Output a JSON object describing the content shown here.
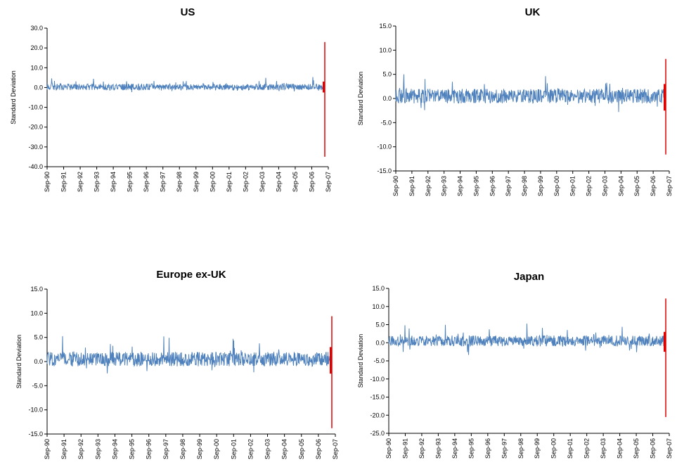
{
  "figure": {
    "colors": {
      "series": "#4f81bd",
      "event": "#e00000",
      "axis": "#000000",
      "text": "#000000"
    }
  },
  "chart_data": [
    {
      "type": "line",
      "title": "US",
      "xlabel": "",
      "ylabel": "Standard Deviation",
      "ylim": [
        -40,
        30
      ],
      "ytick_values": [
        -40,
        -30,
        -20,
        -10,
        0,
        10,
        20,
        30
      ],
      "ytick_labels": [
        "-40.0",
        "-30.0",
        "-20.0",
        "-10.0",
        "0.0",
        "10.0",
        "20.0",
        "30.0"
      ],
      "xtick_labels": [
        "Sep-90",
        "Sep-91",
        "Sep-92",
        "Sep-93",
        "Sep-94",
        "Sep-95",
        "Sep-96",
        "Sep-97",
        "Sep-98",
        "Sep-99",
        "Sep-00",
        "Sep-01",
        "Sep-02",
        "Sep-03",
        "Sep-04",
        "Sep-05",
        "Sep-06",
        "Sep-07"
      ],
      "x_range": [
        "Sep-90",
        "Sep-07"
      ],
      "grid": false,
      "series": [
        {
          "values_summary": "daily noise around 0.0, typical band -2.0 to 2.5, occasional peaks near 5.0"
        },
        {
          "position": "Aug-07",
          "values": [
            23.0,
            -35.0
          ]
        }
      ]
    },
    {
      "type": "line",
      "title": "UK",
      "xlabel": "",
      "ylabel": "Standard Deviation",
      "ylim": [
        -15,
        15
      ],
      "ytick_values": [
        -15,
        -10,
        -5,
        0,
        5,
        10,
        15
      ],
      "ytick_labels": [
        "-15.0",
        "-10.0",
        "-5.0",
        "0.0",
        "5.0",
        "10.0",
        "15.0"
      ],
      "xtick_labels": [
        "Sep-90",
        "Sep-91",
        "Sep-92",
        "Sep-93",
        "Sep-94",
        "Sep-95",
        "Sep-96",
        "Sep-97",
        "Sep-98",
        "Sep-99",
        "Sep-00",
        "Sep-01",
        "Sep-02",
        "Sep-03",
        "Sep-04",
        "Sep-05",
        "Sep-06",
        "Sep-07"
      ],
      "x_range": [
        "Sep-90",
        "Sep-07"
      ],
      "grid": false,
      "series": [
        {
          "values_summary": "daily noise around 0.5, typical band -2.5 to 3.5, peaks near 4.5"
        },
        {
          "position": "Aug-07",
          "values": [
            8.2,
            -11.6
          ]
        }
      ]
    },
    {
      "type": "line",
      "title": "Europe ex-UK",
      "xlabel": "",
      "ylabel": "Standard Deviation",
      "ylim": [
        -15,
        15
      ],
      "ytick_values": [
        -15,
        -10,
        -5,
        0,
        5,
        10,
        15
      ],
      "ytick_labels": [
        "-15.0",
        "-10.0",
        "-5.0",
        "0.0",
        "5.0",
        "10.0",
        "15.0"
      ],
      "xtick_labels": [
        "Sep-90",
        "Sep-91",
        "Sep-92",
        "Sep-93",
        "Sep-94",
        "Sep-95",
        "Sep-96",
        "Sep-97",
        "Sep-98",
        "Sep-99",
        "Sep-00",
        "Sep-01",
        "Sep-02",
        "Sep-03",
        "Sep-04",
        "Sep-05",
        "Sep-06",
        "Sep-07"
      ],
      "x_range": [
        "Sep-90",
        "Sep-07"
      ],
      "grid": false,
      "series": [
        {
          "values_summary": "daily noise around 0.5, typical band -2.0 to 3.0, peaks near 5.0"
        },
        {
          "position": "Aug-07",
          "values": [
            9.4,
            -13.8
          ]
        }
      ]
    },
    {
      "type": "line",
      "title": "Japan",
      "xlabel": "",
      "ylabel": "Standard Deviation",
      "ylim": [
        -25,
        15
      ],
      "ytick_values": [
        -25,
        -20,
        -15,
        -10,
        -5,
        0,
        5,
        10,
        15
      ],
      "ytick_labels": [
        "-25.0",
        "-20.0",
        "-15.0",
        "-10.0",
        "-5.0",
        "0.0",
        "5.0",
        "10.0",
        "15.0"
      ],
      "xtick_labels": [
        "Sep-90",
        "Sep-91",
        "Sep-92",
        "Sep-93",
        "Sep-94",
        "Sep-95",
        "Sep-96",
        "Sep-97",
        "Sep-98",
        "Sep-99",
        "Sep-00",
        "Sep-01",
        "Sep-02",
        "Sep-03",
        "Sep-04",
        "Sep-05",
        "Sep-06",
        "Sep-07"
      ],
      "x_range": [
        "Sep-90",
        "Sep-07"
      ],
      "grid": false,
      "series": [
        {
          "values_summary": "daily noise around 0.5, typical band -2.0 to 3.0, peaks near 5.0"
        },
        {
          "position": "Aug-07",
          "values": [
            12.2,
            -20.5
          ]
        }
      ]
    }
  ]
}
